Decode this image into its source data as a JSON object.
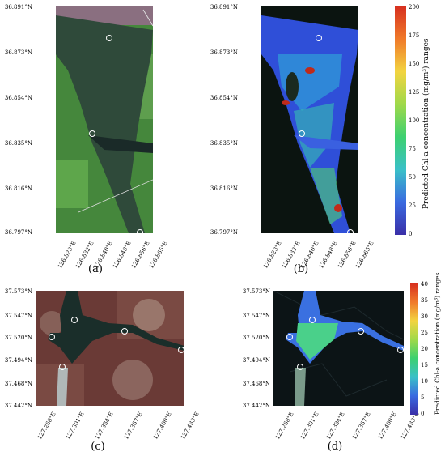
{
  "panels": {
    "a": {
      "label": "(a)",
      "lat_ticks": [
        "36.891°N",
        "36.873°N",
        "36.854°N",
        "36.835°N",
        "36.816°N",
        "36.797°N"
      ],
      "lon_ticks": [
        "126.823°E",
        "126.832°E",
        "126.840°E",
        "126.848°E",
        "126.856°E",
        "126.865°E"
      ]
    },
    "b": {
      "label": "(b)",
      "lat_ticks": [
        "36.891°N",
        "36.873°N",
        "36.854°N",
        "36.835°N",
        "36.816°N",
        "36.797°N"
      ],
      "lon_ticks": [
        "126.823°E",
        "126.832°E",
        "126.840°E",
        "126.848°E",
        "126.856°E",
        "126.865°E"
      ],
      "colorbar": {
        "title": "Predicted Chl-a concentration (mg/m³) ranges",
        "ticks": [
          "200",
          "175",
          "150",
          "125",
          "100",
          "75",
          "50",
          "25",
          "0"
        ]
      }
    },
    "c": {
      "label": "(c)",
      "lat_ticks": [
        "37.573°N",
        "37.547°N",
        "37.520°N",
        "37.494°N",
        "37.468°N",
        "37.442°N"
      ],
      "lon_ticks": [
        "127.268°E",
        "127.301°E",
        "127.334°E",
        "127.367°E",
        "127.400°E",
        "127.433°E"
      ]
    },
    "d": {
      "label": "(d)",
      "lat_ticks": [
        "37.573°N",
        "37.547°N",
        "37.520°N",
        "37.494°N",
        "37.468°N",
        "37.442°N"
      ],
      "lon_ticks": [
        "127.268°E",
        "127.301°E",
        "127.334°E",
        "127.367°E",
        "127.400°E",
        "127.433°E"
      ],
      "colorbar": {
        "title": "Predicted Chl-a concentration (mg/m³) ranges",
        "ticks": [
          "40",
          "35",
          "30",
          "25",
          "20",
          "15",
          "10",
          "5",
          "0"
        ]
      }
    }
  },
  "colors": {
    "jet_top": "#d7301f",
    "jet_mid": "#3cd070",
    "jet_bottom": "#3a2fa8"
  }
}
